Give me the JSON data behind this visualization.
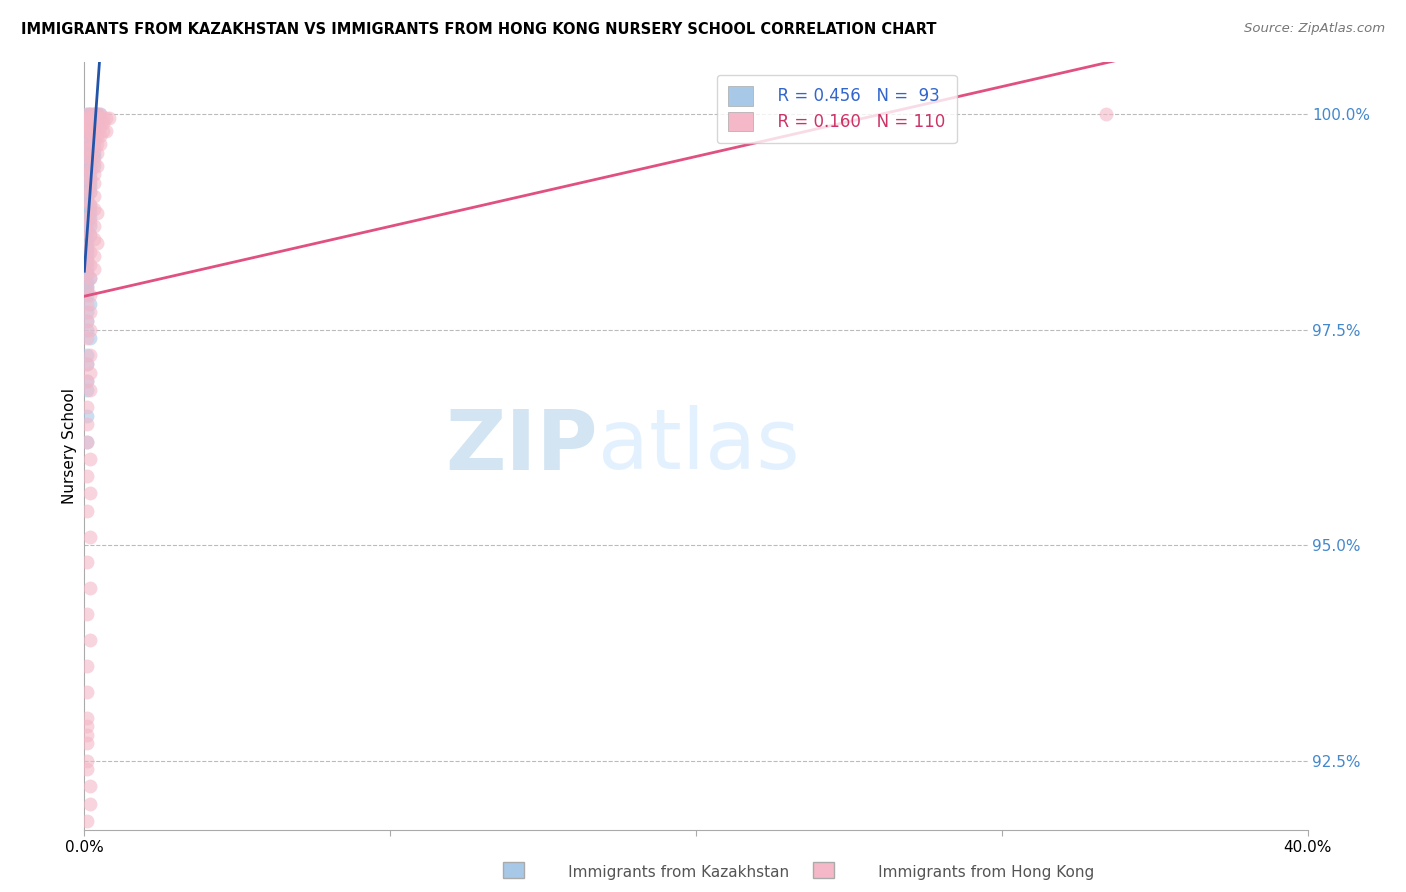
{
  "title": "IMMIGRANTS FROM KAZAKHSTAN VS IMMIGRANTS FROM HONG KONG NURSERY SCHOOL CORRELATION CHART",
  "source": "Source: ZipAtlas.com",
  "ylabel": "Nursery School",
  "ylabel_right_ticks": [
    "100.0%",
    "97.5%",
    "95.0%",
    "92.5%"
  ],
  "ylabel_right_vals": [
    1.0,
    0.975,
    0.95,
    0.925
  ],
  "xmin": 0.0,
  "xmax": 0.4,
  "ymin": 0.917,
  "ymax": 1.006,
  "blue_color": "#a8c8e8",
  "pink_color": "#f4b8c8",
  "line_blue_color": "#2255aa",
  "line_pink_color": "#e05080",
  "watermark_zip": "ZIP",
  "watermark_atlas": "atlas",
  "kazakhstan_x": [
    0.001,
    0.002,
    0.002,
    0.003,
    0.003,
    0.004,
    0.004,
    0.005,
    0.001,
    0.002,
    0.003,
    0.001,
    0.002,
    0.003,
    0.004,
    0.001,
    0.002,
    0.003,
    0.001,
    0.002,
    0.003,
    0.001,
    0.002,
    0.001,
    0.002,
    0.003,
    0.001,
    0.002,
    0.003,
    0.001,
    0.002,
    0.001,
    0.002,
    0.003,
    0.001,
    0.002,
    0.003,
    0.001,
    0.002,
    0.001,
    0.002,
    0.003,
    0.001,
    0.002,
    0.001,
    0.002,
    0.001,
    0.002,
    0.001,
    0.002,
    0.001,
    0.002,
    0.001,
    0.002,
    0.001,
    0.001,
    0.001,
    0.002,
    0.001,
    0.002,
    0.001,
    0.002,
    0.001,
    0.002,
    0.001,
    0.002,
    0.001,
    0.002,
    0.001,
    0.001,
    0.001,
    0.001,
    0.001,
    0.001,
    0.001,
    0.001,
    0.001,
    0.002,
    0.001,
    0.001,
    0.001,
    0.001,
    0.002,
    0.001,
    0.001,
    0.001,
    0.002,
    0.001,
    0.001,
    0.001,
    0.001,
    0.001,
    0.001
  ],
  "kazakhstan_y": [
    1.0,
    1.0,
    1.0,
    1.0,
    1.0,
    1.0,
    1.0,
    1.0,
    0.9995,
    0.9995,
    0.9995,
    0.999,
    0.999,
    0.999,
    0.999,
    0.9985,
    0.9985,
    0.9985,
    0.998,
    0.998,
    0.998,
    0.9975,
    0.9975,
    0.997,
    0.997,
    0.997,
    0.9965,
    0.9965,
    0.9965,
    0.996,
    0.996,
    0.9955,
    0.9955,
    0.9955,
    0.995,
    0.995,
    0.995,
    0.9945,
    0.9945,
    0.994,
    0.994,
    0.994,
    0.9935,
    0.9935,
    0.993,
    0.993,
    0.9925,
    0.9925,
    0.992,
    0.992,
    0.9915,
    0.9915,
    0.991,
    0.991,
    0.9905,
    0.99,
    0.9895,
    0.9895,
    0.989,
    0.989,
    0.9885,
    0.9885,
    0.988,
    0.988,
    0.9875,
    0.987,
    0.9865,
    0.986,
    0.9855,
    0.985,
    0.9845,
    0.984,
    0.9835,
    0.983,
    0.9825,
    0.982,
    0.9815,
    0.981,
    0.9805,
    0.98,
    0.9795,
    0.979,
    0.978,
    0.977,
    0.976,
    0.975,
    0.974,
    0.972,
    0.971,
    0.969,
    0.968,
    0.965,
    0.962
  ],
  "hongkong_x": [
    0.001,
    0.002,
    0.003,
    0.004,
    0.005,
    0.001,
    0.002,
    0.003,
    0.004,
    0.005,
    0.006,
    0.007,
    0.008,
    0.001,
    0.002,
    0.003,
    0.004,
    0.005,
    0.006,
    0.001,
    0.002,
    0.003,
    0.004,
    0.005,
    0.006,
    0.007,
    0.001,
    0.002,
    0.003,
    0.004,
    0.005,
    0.001,
    0.002,
    0.003,
    0.004,
    0.005,
    0.001,
    0.002,
    0.003,
    0.004,
    0.001,
    0.002,
    0.003,
    0.004,
    0.001,
    0.002,
    0.003,
    0.001,
    0.002,
    0.003,
    0.001,
    0.002,
    0.003,
    0.001,
    0.002,
    0.003,
    0.004,
    0.001,
    0.002,
    0.003,
    0.001,
    0.002,
    0.003,
    0.004,
    0.001,
    0.002,
    0.003,
    0.001,
    0.002,
    0.003,
    0.001,
    0.002,
    0.001,
    0.002,
    0.001,
    0.002,
    0.001,
    0.002,
    0.001,
    0.002,
    0.001,
    0.002,
    0.001,
    0.002,
    0.001,
    0.001,
    0.001,
    0.002,
    0.001,
    0.002,
    0.001,
    0.002,
    0.001,
    0.002,
    0.001,
    0.002,
    0.001,
    0.001,
    0.001,
    0.001,
    0.001,
    0.002,
    0.002,
    0.001,
    0.001,
    0.001,
    0.001,
    0.001,
    0.001,
    0.334
  ],
  "hongkong_y": [
    1.0,
    1.0,
    1.0,
    1.0,
    1.0,
    0.9995,
    0.9995,
    0.9995,
    0.9995,
    0.9995,
    0.9995,
    0.9995,
    0.9995,
    0.999,
    0.999,
    0.999,
    0.999,
    0.999,
    0.999,
    0.9985,
    0.9985,
    0.9985,
    0.9985,
    0.9985,
    0.998,
    0.998,
    0.998,
    0.998,
    0.9975,
    0.9975,
    0.9975,
    0.997,
    0.997,
    0.997,
    0.9965,
    0.9965,
    0.996,
    0.996,
    0.996,
    0.9955,
    0.995,
    0.995,
    0.9945,
    0.994,
    0.994,
    0.9935,
    0.993,
    0.993,
    0.9925,
    0.992,
    0.9915,
    0.991,
    0.9905,
    0.99,
    0.9895,
    0.989,
    0.9885,
    0.988,
    0.9875,
    0.987,
    0.9865,
    0.986,
    0.9855,
    0.985,
    0.9845,
    0.984,
    0.9835,
    0.983,
    0.9825,
    0.982,
    0.9815,
    0.981,
    0.98,
    0.979,
    0.978,
    0.977,
    0.976,
    0.975,
    0.974,
    0.972,
    0.971,
    0.97,
    0.969,
    0.968,
    0.966,
    0.964,
    0.962,
    0.96,
    0.958,
    0.956,
    0.954,
    0.951,
    0.948,
    0.945,
    0.942,
    0.939,
    0.936,
    0.933,
    0.93,
    0.928,
    0.925,
    0.922,
    0.92,
    0.918,
    0.916,
    0.914,
    0.929,
    0.927,
    0.924,
    1.0
  ]
}
